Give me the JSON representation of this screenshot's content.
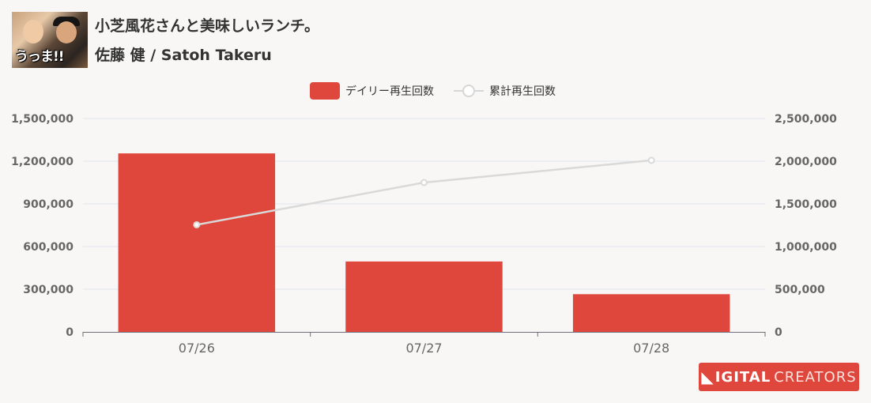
{
  "header": {
    "thumbnail_caption": "うっま!!",
    "title": "小芝風花さんと美味しいランチ。",
    "subtitle": "佐藤 健 / Satoh Takeru"
  },
  "brand": {
    "text_bold": "IGITAL",
    "text_light": "CREATORS",
    "color": "#e0473c"
  },
  "colors": {
    "bar": "#e0473c",
    "line": "#d9d9d9",
    "grid": "#dfe6f2",
    "axis_text": "#666666"
  },
  "chart_data": {
    "type": "bar",
    "categories": [
      "07/26",
      "07/27",
      "07/28"
    ],
    "series": [
      {
        "name": "デイリー再生回数",
        "type": "bar",
        "axis": "left",
        "values": [
          1255000,
          495000,
          265000
        ]
      },
      {
        "name": "累計再生回数",
        "type": "line",
        "axis": "right",
        "values": [
          1255000,
          1750000,
          2010000
        ]
      }
    ],
    "y_left": {
      "min": 0,
      "max": 1500000,
      "ticks": [
        "0",
        "300,000",
        "600,000",
        "900,000",
        "1,200,000",
        "1,500,000"
      ]
    },
    "y_right": {
      "min": 0,
      "max": 2500000,
      "ticks": [
        "0",
        "500,000",
        "1,000,000",
        "1,500,000",
        "2,000,000",
        "2,500,000"
      ]
    },
    "grid": true,
    "legend": "top-center"
  }
}
